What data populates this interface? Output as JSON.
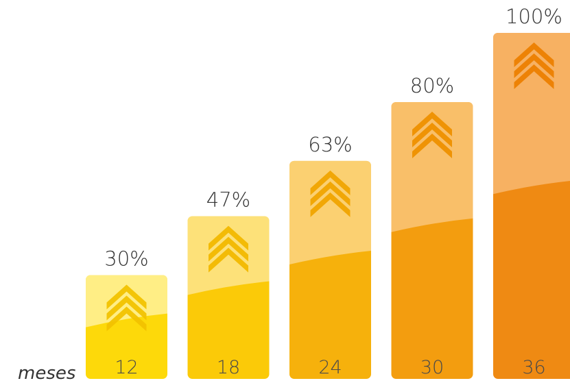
{
  "chart_data": {
    "type": "bar",
    "categories": [
      "12",
      "18",
      "24",
      "30",
      "36"
    ],
    "values": [
      30,
      47,
      63,
      80,
      100
    ],
    "value_labels": [
      "30%",
      "47%",
      "63%",
      "80%",
      "100%"
    ],
    "xlabel": "meses",
    "ylim": [
      0,
      100
    ],
    "grid": false,
    "legend": "none",
    "bar_colors": [
      "#FDD90A",
      "#FBCA08",
      "#F6B10C",
      "#F39D0F",
      "#EF8A13"
    ],
    "bar_top_colors": [
      "#FFF3A8",
      "#FEE89A",
      "#FCD88E",
      "#FAC983",
      "#F8BC78"
    ],
    "chevron_colors": [
      "#F2C200",
      "#F2B800",
      "#F0A400",
      "#EE9000",
      "#EC8000"
    ],
    "icon": "triple-chevron-up-icon"
  }
}
